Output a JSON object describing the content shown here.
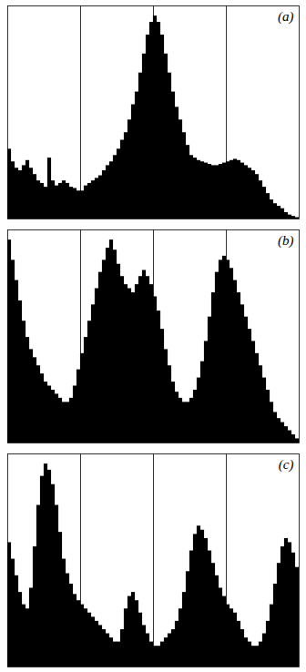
{
  "chart_data": [
    {
      "type": "histogram",
      "annotations": [
        "(a)"
      ],
      "color": "#000000",
      "vlines": [
        0.25,
        0.5,
        0.75
      ],
      "bins": [
        0,
        0.0125,
        0.025,
        0.0375,
        0.05,
        0.0625,
        0.075,
        0.0875,
        0.1,
        0.1125,
        0.125,
        0.1375,
        0.15,
        0.1625,
        0.175,
        0.1875,
        0.2,
        0.2125,
        0.225,
        0.2375,
        0.25,
        0.2625,
        0.275,
        0.2875,
        0.3,
        0.3125,
        0.325,
        0.3375,
        0.35,
        0.3625,
        0.375,
        0.3875,
        0.4,
        0.4125,
        0.425,
        0.4375,
        0.45,
        0.4625,
        0.475,
        0.4875,
        0.5,
        0.5125,
        0.525,
        0.5375,
        0.55,
        0.5625,
        0.575,
        0.5875,
        0.6,
        0.6125,
        0.625,
        0.6375,
        0.65,
        0.6625,
        0.675,
        0.6875,
        0.7,
        0.7125,
        0.725,
        0.7375,
        0.75,
        0.7625,
        0.775,
        0.7875,
        0.8,
        0.8125,
        0.825,
        0.8375,
        0.85,
        0.8625,
        0.875,
        0.8875,
        0.9,
        0.9125,
        0.925,
        0.9375,
        0.95,
        0.9625,
        0.975,
        0.9875,
        1
      ],
      "values": [
        55,
        45,
        40,
        38,
        42,
        46,
        40,
        35,
        30,
        28,
        25,
        48,
        30,
        26,
        28,
        30,
        28,
        25,
        24,
        22,
        22,
        26,
        28,
        30,
        32,
        34,
        38,
        42,
        45,
        50,
        55,
        62,
        68,
        78,
        90,
        100,
        115,
        130,
        145,
        155,
        160,
        155,
        145,
        130,
        115,
        100,
        88,
        78,
        68,
        58,
        50,
        48,
        46,
        45,
        44,
        43,
        42,
        42,
        43,
        44,
        45,
        46,
        47,
        46,
        44,
        42,
        40,
        38,
        35,
        30,
        25,
        20,
        15,
        12,
        10,
        8,
        5,
        3,
        2,
        1
      ],
      "xlim": [
        0,
        1
      ],
      "ylim": [
        0,
        168
      ],
      "tick_labels": false
    },
    {
      "type": "histogram",
      "annotations": [
        "(b)"
      ],
      "color": "#000000",
      "vlines": [
        0.25,
        0.5,
        0.75
      ],
      "bins": [
        0,
        0.0125,
        0.025,
        0.0375,
        0.05,
        0.0625,
        0.075,
        0.0875,
        0.1,
        0.1125,
        0.125,
        0.1375,
        0.15,
        0.1625,
        0.175,
        0.1875,
        0.2,
        0.2125,
        0.225,
        0.2375,
        0.25,
        0.2625,
        0.275,
        0.2875,
        0.3,
        0.3125,
        0.325,
        0.3375,
        0.35,
        0.3625,
        0.375,
        0.3875,
        0.4,
        0.4125,
        0.425,
        0.4375,
        0.45,
        0.4625,
        0.475,
        0.4875,
        0.5,
        0.5125,
        0.525,
        0.5375,
        0.55,
        0.5625,
        0.575,
        0.5875,
        0.6,
        0.6125,
        0.625,
        0.6375,
        0.65,
        0.6625,
        0.675,
        0.6875,
        0.7,
        0.7125,
        0.725,
        0.7375,
        0.75,
        0.7625,
        0.775,
        0.7875,
        0.8,
        0.8125,
        0.825,
        0.8375,
        0.85,
        0.8625,
        0.875,
        0.8875,
        0.9,
        0.9125,
        0.925,
        0.9375,
        0.95,
        0.9625,
        0.975,
        0.9875,
        1
      ],
      "values": [
        100,
        90,
        80,
        70,
        60,
        52,
        46,
        42,
        38,
        34,
        30,
        28,
        26,
        24,
        22,
        20,
        20,
        22,
        28,
        36,
        44,
        52,
        60,
        68,
        76,
        84,
        90,
        96,
        100,
        95,
        88,
        82,
        78,
        76,
        74,
        78,
        82,
        85,
        82,
        78,
        72,
        65,
        56,
        46,
        38,
        30,
        25,
        22,
        20,
        20,
        22,
        26,
        32,
        40,
        50,
        62,
        74,
        84,
        90,
        92,
        90,
        86,
        80,
        74,
        68,
        62,
        56,
        50,
        44,
        38,
        32,
        26,
        20,
        15,
        12,
        10,
        8,
        6,
        4,
        2
      ],
      "xlim": [
        0,
        1
      ],
      "ylim": [
        0,
        105
      ],
      "tick_labels": false
    },
    {
      "type": "histogram",
      "annotations": [
        "(c)"
      ],
      "color": "#000000",
      "vlines": [
        0.25,
        0.5,
        0.75
      ],
      "bins": [
        0,
        0.0125,
        0.025,
        0.0375,
        0.05,
        0.0625,
        0.075,
        0.0875,
        0.1,
        0.1125,
        0.125,
        0.1375,
        0.15,
        0.1625,
        0.175,
        0.1875,
        0.2,
        0.2125,
        0.225,
        0.2375,
        0.25,
        0.2625,
        0.275,
        0.2875,
        0.3,
        0.3125,
        0.325,
        0.3375,
        0.35,
        0.3625,
        0.375,
        0.3875,
        0.4,
        0.4125,
        0.425,
        0.4375,
        0.45,
        0.4625,
        0.475,
        0.4875,
        0.5,
        0.5125,
        0.525,
        0.5375,
        0.55,
        0.5625,
        0.575,
        0.5875,
        0.6,
        0.6125,
        0.625,
        0.6375,
        0.65,
        0.6625,
        0.675,
        0.6875,
        0.7,
        0.7125,
        0.725,
        0.7375,
        0.75,
        0.7625,
        0.775,
        0.7875,
        0.8,
        0.8125,
        0.825,
        0.8375,
        0.85,
        0.8625,
        0.875,
        0.8875,
        0.9,
        0.9125,
        0.925,
        0.9375,
        0.95,
        0.9625,
        0.975,
        0.9875,
        1
      ],
      "values": [
        60,
        52,
        44,
        36,
        30,
        28,
        38,
        58,
        78,
        92,
        98,
        95,
        88,
        78,
        65,
        52,
        45,
        40,
        35,
        32,
        30,
        28,
        26,
        24,
        22,
        20,
        18,
        16,
        14,
        12,
        12,
        18,
        28,
        34,
        36,
        32,
        26,
        20,
        16,
        12,
        10,
        10,
        12,
        14,
        16,
        18,
        22,
        28,
        36,
        46,
        56,
        64,
        68,
        66,
        62,
        56,
        50,
        44,
        38,
        34,
        30,
        28,
        26,
        22,
        18,
        14,
        12,
        10,
        10,
        12,
        16,
        22,
        30,
        40,
        50,
        58,
        62,
        60,
        55,
        48
      ],
      "xlim": [
        0,
        1
      ],
      "ylim": [
        0,
        102.9
      ],
      "tick_labels": false
    }
  ]
}
